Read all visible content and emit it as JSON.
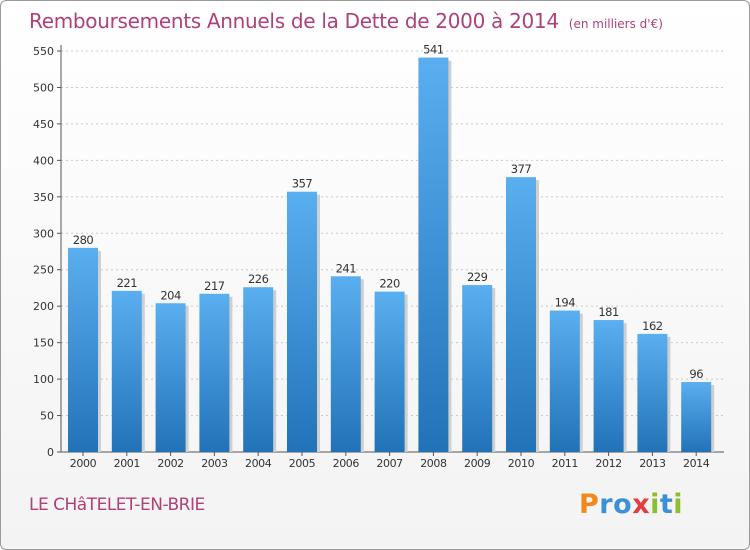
{
  "page": {
    "title": "Remboursements Annuels de la Dette de 2000 à 2014",
    "subtitle": "(en milliers d'€)",
    "commune": "LE CHâTELET-EN-BRIE",
    "logo": "Proxiti"
  },
  "colors": {
    "title": "#b0407a",
    "bar_top": "#5aaff0",
    "bar_bottom": "#2272b8",
    "grid": "#c9c9c9",
    "axis_text": "#333333",
    "logo_letters": [
      "#f08a1c",
      "#3d8fd6",
      "#3d8fd6",
      "#e63c3c",
      "#8bbf2b",
      "#3d8fd6",
      "#8bbf2b"
    ]
  },
  "chart_data": {
    "type": "bar",
    "title": "Remboursements Annuels de la Dette de 2000 à 2014",
    "subtitle": "(en milliers d'€)",
    "xlabel": "",
    "ylabel": "",
    "categories": [
      "2000",
      "2001",
      "2002",
      "2003",
      "2004",
      "2005",
      "2006",
      "2007",
      "2008",
      "2009",
      "2010",
      "2011",
      "2012",
      "2013",
      "2014"
    ],
    "values": [
      280,
      221,
      204,
      217,
      226,
      357,
      241,
      220,
      541,
      229,
      377,
      194,
      181,
      162,
      96
    ],
    "ylim": [
      0,
      550
    ],
    "yticks": [
      0,
      50,
      100,
      150,
      200,
      250,
      300,
      350,
      400,
      450,
      500,
      550
    ],
    "grid": true
  }
}
